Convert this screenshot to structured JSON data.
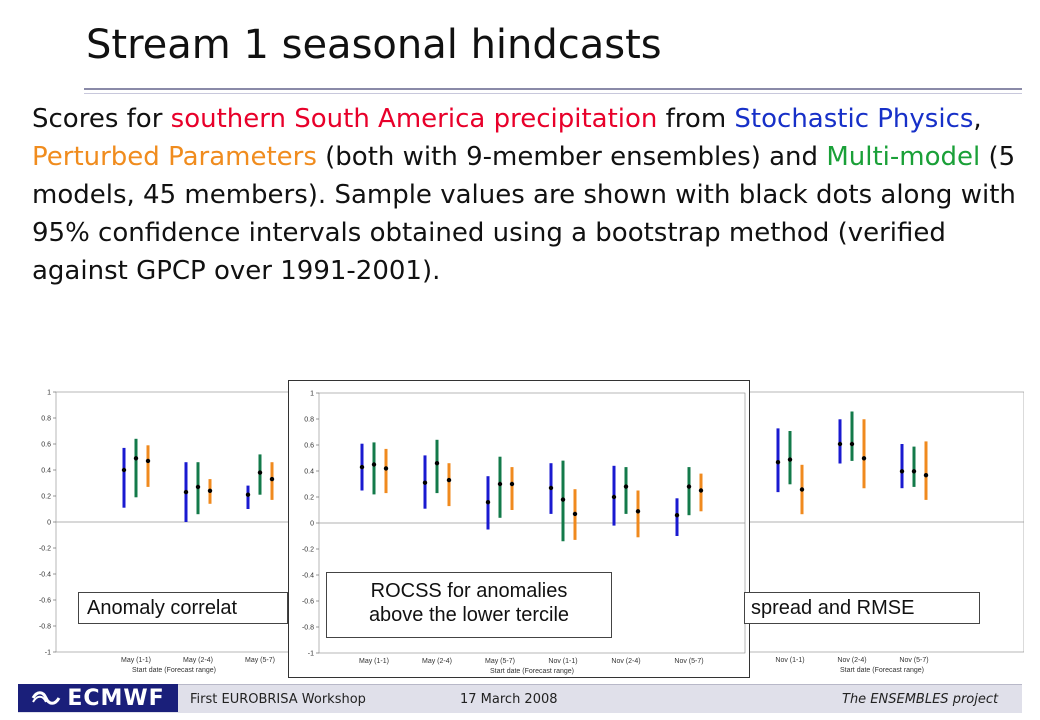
{
  "slide": {
    "title": "Stream 1 seasonal hindcasts",
    "text": {
      "t1": "Scores for ",
      "t2": "southern South America precipitation",
      "t3": " from ",
      "t4": "Stochastic Physics",
      "t5": ", ",
      "t6": "Perturbed Parameters",
      "t7": " (both with 9-member ensembles) and ",
      "t8": "Multi-model",
      "t9": " (5 models, 45 members). Sample values are shown with black dots along with 95% confidence intervals obtained using a bootstrap method (verified against GPCP over 1991-2001)."
    }
  },
  "colors": {
    "stochastic": "#1a1ad0",
    "multimodel": "#137a4a",
    "perturbed": "#f08a1e",
    "dot": "#000000"
  },
  "labels": {
    "acc": "Anomaly correlat",
    "rocss_line1": "ROCSS for anomalies",
    "rocss_line2": "above the lower tercile",
    "spread": "spread and RMSE"
  },
  "chart_data": [
    {
      "type": "errorbar",
      "title": "Anomaly correlation",
      "xlabel": "Start date (Forecast range)",
      "ylim": [
        -1,
        1
      ],
      "yticks": [
        "1",
        "0.8",
        "0.6",
        "0.4",
        "0.2",
        "0",
        "-0.2",
        "-0.4",
        "-0.6",
        "-0.8",
        "-1"
      ],
      "categories": [
        "May (1-1)",
        "May (2-4)",
        "May (5-7)"
      ],
      "series": [
        {
          "name": "Stochastic Physics",
          "values": [
            0.4,
            0.23,
            0.21
          ],
          "low": [
            0.11,
            0.0,
            0.1
          ],
          "high": [
            0.57,
            0.46,
            0.28
          ]
        },
        {
          "name": "Multi-model",
          "values": [
            0.49,
            0.27,
            0.38
          ],
          "low": [
            0.19,
            0.06,
            0.21
          ],
          "high": [
            0.64,
            0.46,
            0.52
          ]
        },
        {
          "name": "Perturbed Parameters",
          "values": [
            0.47,
            0.24,
            0.33
          ],
          "low": [
            0.27,
            0.14,
            0.17
          ],
          "high": [
            0.59,
            0.33,
            0.46
          ]
        }
      ]
    },
    {
      "type": "errorbar",
      "title": "ROCSS for anomalies above the lower tercile",
      "xlabel": "Start date (Forecast range)",
      "ylim": [
        -1,
        1
      ],
      "yticks": [
        "1",
        "0.8",
        "0.6",
        "0.4",
        "0.2",
        "0",
        "-0.2",
        "-0.4",
        "-0.6",
        "-0.8",
        "-1"
      ],
      "categories": [
        "May (1-1)",
        "May (2-4)",
        "May (5-7)",
        "Nov (1-1)",
        "Nov (2-4)",
        "Nov (5-7)"
      ],
      "series": [
        {
          "name": "Stochastic Physics",
          "values": [
            0.43,
            0.31,
            0.16,
            0.27,
            0.2,
            0.06
          ],
          "low": [
            0.25,
            0.11,
            -0.05,
            0.07,
            -0.02,
            -0.1
          ],
          "high": [
            0.61,
            0.52,
            0.36,
            0.46,
            0.44,
            0.19
          ]
        },
        {
          "name": "Multi-model",
          "values": [
            0.45,
            0.46,
            0.3,
            0.18,
            0.28,
            0.28
          ],
          "low": [
            0.22,
            0.23,
            0.04,
            -0.14,
            0.07,
            0.06
          ],
          "high": [
            0.62,
            0.64,
            0.51,
            0.48,
            0.43,
            0.43
          ]
        },
        {
          "name": "Perturbed Parameters",
          "values": [
            0.42,
            0.33,
            0.3,
            0.07,
            0.09,
            0.25
          ],
          "low": [
            0.23,
            0.13,
            0.1,
            -0.13,
            -0.11,
            0.09
          ],
          "high": [
            0.57,
            0.46,
            0.43,
            0.26,
            0.25,
            0.38
          ]
        }
      ]
    },
    {
      "type": "errorbar",
      "title": "spread and RMSE",
      "xlabel": "Start date (Forecast range)",
      "categories": [
        "Nov (1-1)",
        "Nov (2-4)",
        "Nov (5-7)"
      ],
      "series": [
        {
          "name": "Stochastic Physics",
          "values": [
            0.46,
            0.6,
            0.39
          ],
          "low": [
            0.23,
            0.45,
            0.26
          ],
          "high": [
            0.72,
            0.79,
            0.6
          ]
        },
        {
          "name": "Multi-model",
          "values": [
            0.48,
            0.6,
            0.39
          ],
          "low": [
            0.29,
            0.47,
            0.27
          ],
          "high": [
            0.7,
            0.85,
            0.58
          ]
        },
        {
          "name": "Perturbed Parameters",
          "values": [
            0.25,
            0.49,
            0.36
          ],
          "low": [
            0.06,
            0.26,
            0.17
          ],
          "high": [
            0.44,
            0.79,
            0.62
          ]
        }
      ]
    }
  ],
  "footer": {
    "logo": "ECMWF",
    "workshop": "First EUROBRISA Workshop",
    "date": "17 March 2008",
    "project": "The ENSEMBLES project"
  }
}
